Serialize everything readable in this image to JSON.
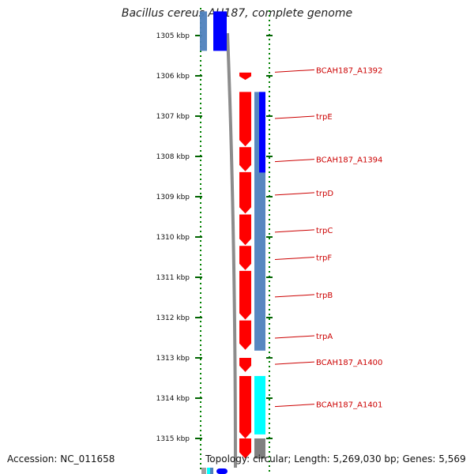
{
  "title": "Bacillus cereus AH187, complete genome",
  "footer": {
    "accession": "Accession: NC_011658",
    "stats": "Topology: circular; Length: 5,269,030 bp; Genes: 5,569"
  },
  "colors": {
    "forward_cds": "#ff0000",
    "reverse_cds": "#0000ff",
    "operon": "#4f81bd",
    "special": "#00ffff",
    "grey": "#808080",
    "label": "#cc0000",
    "tick": "#006400",
    "dots": "#008000"
  },
  "ticks": [
    {
      "kbp": 1305,
      "label": "1305 kbp"
    },
    {
      "kbp": 1306,
      "label": "1306 kbp"
    },
    {
      "kbp": 1307,
      "label": "1307 kbp"
    },
    {
      "kbp": 1308,
      "label": "1308 kbp"
    },
    {
      "kbp": 1309,
      "label": "1309 kbp"
    },
    {
      "kbp": 1310,
      "label": "1310 kbp"
    },
    {
      "kbp": 1311,
      "label": "1311 kbp"
    },
    {
      "kbp": 1312,
      "label": "1312 kbp"
    },
    {
      "kbp": 1313,
      "label": "1313 kbp"
    },
    {
      "kbp": 1314,
      "label": "1314 kbp"
    },
    {
      "kbp": 1315,
      "label": "1315 kbp"
    }
  ],
  "features": [
    {
      "track": "left",
      "start": 1304.4,
      "end": 1305.38,
      "color": "operon"
    },
    {
      "track": "inner",
      "start": 1304.4,
      "end": 1305.38,
      "color": "reverse_cds"
    },
    {
      "track": "fwd",
      "start": 1305.92,
      "end": 1306.1,
      "color": "forward_cds",
      "label": "BCAH187_A1392",
      "label_kbp": 1305.85
    },
    {
      "track": "fwd",
      "start": 1306.4,
      "end": 1307.75,
      "color": "forward_cds",
      "label": "trpE",
      "label_kbp": 1307.0
    },
    {
      "track": "fwd",
      "start": 1307.77,
      "end": 1308.37,
      "color": "forward_cds",
      "label": "BCAH187_A1394",
      "label_kbp": 1308.07
    },
    {
      "track": "fwd",
      "start": 1308.39,
      "end": 1309.42,
      "color": "forward_cds",
      "label": "trpD",
      "label_kbp": 1308.9
    },
    {
      "track": "fwd",
      "start": 1309.44,
      "end": 1310.2,
      "color": "forward_cds",
      "label": "trpC",
      "label_kbp": 1309.82
    },
    {
      "track": "fwd",
      "start": 1310.22,
      "end": 1310.82,
      "color": "forward_cds",
      "label": "trpF",
      "label_kbp": 1310.5
    },
    {
      "track": "fwd",
      "start": 1310.84,
      "end": 1312.05,
      "color": "forward_cds",
      "label": "trpB",
      "label_kbp": 1311.43
    },
    {
      "track": "fwd",
      "start": 1312.07,
      "end": 1312.8,
      "color": "forward_cds",
      "label": "trpA",
      "label_kbp": 1312.45
    },
    {
      "track": "fwd",
      "start": 1313.0,
      "end": 1313.35,
      "color": "forward_cds",
      "label": "BCAH187_A1400",
      "label_kbp": 1313.1
    },
    {
      "track": "fwd",
      "start": 1313.45,
      "end": 1315.0,
      "color": "forward_cds",
      "label": "BCAH187_A1401",
      "label_kbp": 1314.15
    },
    {
      "track": "op",
      "start": 1306.4,
      "end": 1312.82,
      "color": "operon"
    },
    {
      "track": "op2",
      "start": 1306.4,
      "end": 1308.4,
      "color": "reverse_cds"
    },
    {
      "track": "op",
      "start": 1313.45,
      "end": 1314.9,
      "color": "special"
    },
    {
      "track": "fwd",
      "start": 1315.0,
      "end": 1315.5,
      "color": "forward_cds"
    },
    {
      "track": "op",
      "start": 1315.0,
      "end": 1315.5,
      "color": "grey"
    }
  ]
}
